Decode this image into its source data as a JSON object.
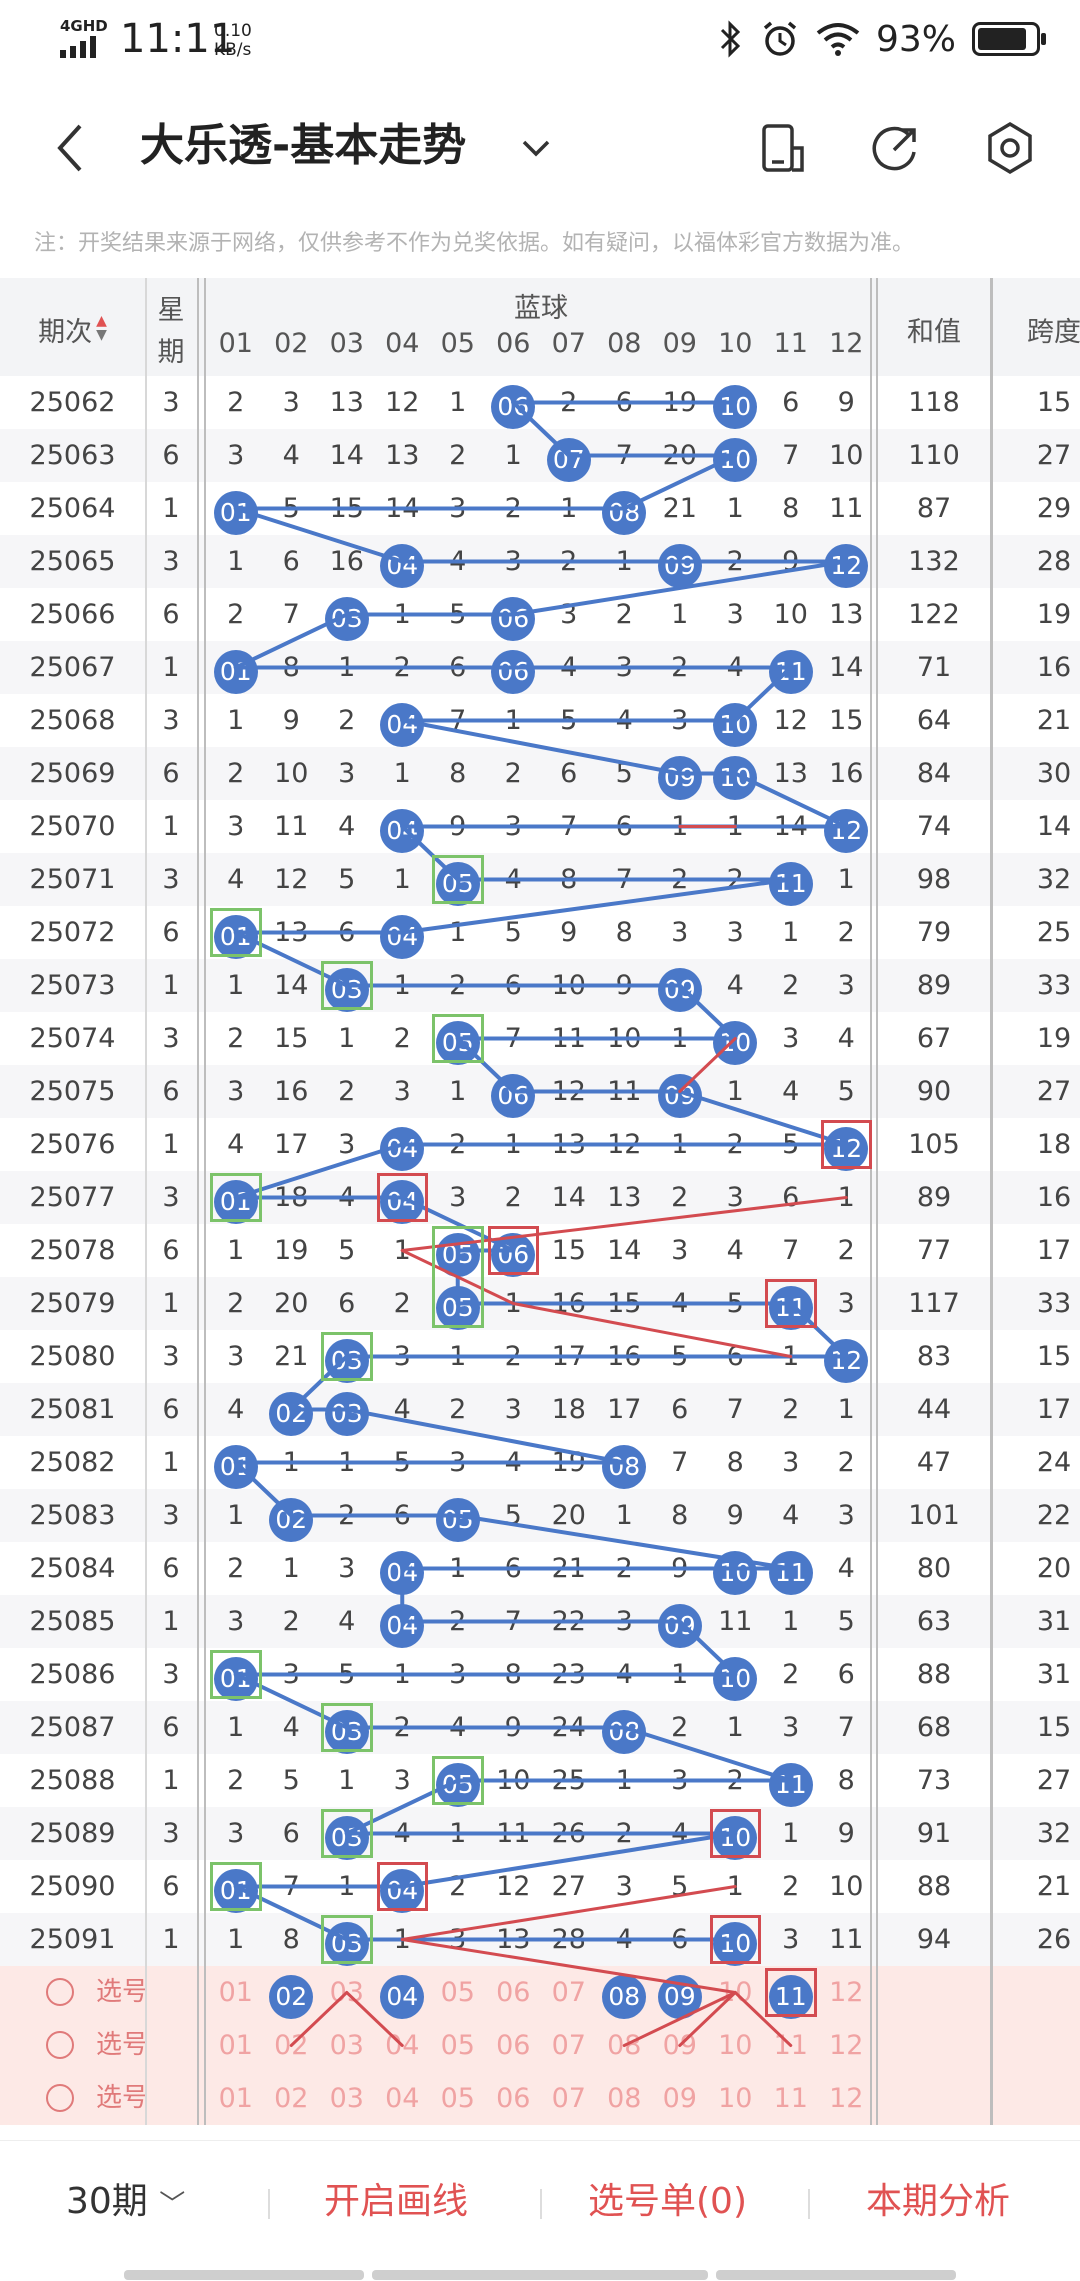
{
  "status": {
    "network": "4GHD",
    "time": "11:11",
    "speed_value": "0.10",
    "speed_unit": "KB/s",
    "battery": "93%"
  },
  "header": {
    "title": "大乐透-基本走势",
    "icons": [
      "back-icon",
      "chevron-down-icon",
      "phone-icon",
      "share-icon",
      "settings-icon"
    ]
  },
  "notice": "注：开奖结果来源于网络，仅供参考不作为兑奖依据。如有疑问，以福体彩官方数据为准。",
  "table": {
    "col_period": "期次",
    "col_week_1": "星",
    "col_week_2": "期",
    "col_blue": "蓝球",
    "col_sum": "和值",
    "col_span": "跨度",
    "numbers": [
      "01",
      "02",
      "03",
      "04",
      "05",
      "06",
      "07",
      "08",
      "09",
      "10",
      "11",
      "12"
    ],
    "rows": [
      {
        "p": "25062",
        "w": "3",
        "c": [
          "2",
          "3",
          "13",
          "12",
          "1",
          "06",
          "2",
          "6",
          "19",
          "10",
          "6",
          "9"
        ],
        "s": "118",
        "k": "15"
      },
      {
        "p": "25063",
        "w": "6",
        "c": [
          "3",
          "4",
          "14",
          "13",
          "2",
          "1",
          "07",
          "7",
          "20",
          "10",
          "7",
          "10"
        ],
        "s": "110",
        "k": "27"
      },
      {
        "p": "25064",
        "w": "1",
        "c": [
          "01",
          "5",
          "15",
          "14",
          "3",
          "2",
          "1",
          "08",
          "21",
          "1",
          "8",
          "11"
        ],
        "s": "87",
        "k": "29"
      },
      {
        "p": "25065",
        "w": "3",
        "c": [
          "1",
          "6",
          "16",
          "04",
          "4",
          "3",
          "2",
          "1",
          "09",
          "2",
          "9",
          "12"
        ],
        "s": "132",
        "k": "28"
      },
      {
        "p": "25066",
        "w": "6",
        "c": [
          "2",
          "7",
          "03",
          "1",
          "5",
          "06",
          "3",
          "2",
          "1",
          "3",
          "10",
          "13"
        ],
        "s": "122",
        "k": "19"
      },
      {
        "p": "25067",
        "w": "1",
        "c": [
          "01",
          "8",
          "1",
          "2",
          "6",
          "06",
          "4",
          "3",
          "2",
          "4",
          "11",
          "14"
        ],
        "s": "71",
        "k": "16"
      },
      {
        "p": "25068",
        "w": "3",
        "c": [
          "1",
          "9",
          "2",
          "04",
          "7",
          "1",
          "5",
          "4",
          "3",
          "10",
          "12",
          "15"
        ],
        "s": "64",
        "k": "21"
      },
      {
        "p": "25069",
        "w": "6",
        "c": [
          "2",
          "10",
          "3",
          "1",
          "8",
          "2",
          "6",
          "5",
          "09",
          "10",
          "13",
          "16"
        ],
        "s": "84",
        "k": "30"
      },
      {
        "p": "25070",
        "w": "1",
        "c": [
          "3",
          "11",
          "4",
          "04",
          "9",
          "3",
          "7",
          "6",
          "1",
          "1",
          "14",
          "12"
        ],
        "s": "74",
        "k": "14"
      },
      {
        "p": "25071",
        "w": "3",
        "c": [
          "4",
          "12",
          "5",
          "1",
          "05",
          "4",
          "8",
          "7",
          "2",
          "2",
          "11",
          "1"
        ],
        "s": "98",
        "k": "32"
      },
      {
        "p": "25072",
        "w": "6",
        "c": [
          "01",
          "13",
          "6",
          "04",
          "1",
          "5",
          "9",
          "8",
          "3",
          "3",
          "1",
          "2"
        ],
        "s": "79",
        "k": "25"
      },
      {
        "p": "25073",
        "w": "1",
        "c": [
          "1",
          "14",
          "03",
          "1",
          "2",
          "6",
          "10",
          "9",
          "09",
          "4",
          "2",
          "3"
        ],
        "s": "89",
        "k": "33"
      },
      {
        "p": "25074",
        "w": "3",
        "c": [
          "2",
          "15",
          "1",
          "2",
          "05",
          "7",
          "11",
          "10",
          "1",
          "10",
          "3",
          "4"
        ],
        "s": "67",
        "k": "19"
      },
      {
        "p": "25075",
        "w": "6",
        "c": [
          "3",
          "16",
          "2",
          "3",
          "1",
          "06",
          "12",
          "11",
          "09",
          "1",
          "4",
          "5"
        ],
        "s": "90",
        "k": "27"
      },
      {
        "p": "25076",
        "w": "1",
        "c": [
          "4",
          "17",
          "3",
          "04",
          "2",
          "1",
          "13",
          "12",
          "1",
          "2",
          "5",
          "12"
        ],
        "s": "105",
        "k": "18"
      },
      {
        "p": "25077",
        "w": "3",
        "c": [
          "01",
          "18",
          "4",
          "04",
          "3",
          "2",
          "14",
          "13",
          "2",
          "3",
          "6",
          "1"
        ],
        "s": "89",
        "k": "16"
      },
      {
        "p": "25078",
        "w": "6",
        "c": [
          "1",
          "19",
          "5",
          "1",
          "05",
          "06",
          "15",
          "14",
          "3",
          "4",
          "7",
          "2"
        ],
        "s": "77",
        "k": "17"
      },
      {
        "p": "25079",
        "w": "1",
        "c": [
          "2",
          "20",
          "6",
          "2",
          "05",
          "1",
          "16",
          "15",
          "4",
          "5",
          "11",
          "3"
        ],
        "s": "117",
        "k": "33"
      },
      {
        "p": "25080",
        "w": "3",
        "c": [
          "3",
          "21",
          "03",
          "3",
          "1",
          "2",
          "17",
          "16",
          "5",
          "6",
          "1",
          "12"
        ],
        "s": "83",
        "k": "15"
      },
      {
        "p": "25081",
        "w": "6",
        "c": [
          "4",
          "02",
          "03",
          "4",
          "2",
          "3",
          "18",
          "17",
          "6",
          "7",
          "2",
          "1"
        ],
        "s": "44",
        "k": "17"
      },
      {
        "p": "25082",
        "w": "1",
        "c": [
          "01",
          "1",
          "1",
          "5",
          "3",
          "4",
          "19",
          "08",
          "7",
          "8",
          "3",
          "2"
        ],
        "s": "47",
        "k": "24"
      },
      {
        "p": "25083",
        "w": "3",
        "c": [
          "1",
          "02",
          "2",
          "6",
          "05",
          "5",
          "20",
          "1",
          "8",
          "9",
          "4",
          "3"
        ],
        "s": "101",
        "k": "22"
      },
      {
        "p": "25084",
        "w": "6",
        "c": [
          "2",
          "1",
          "3",
          "04",
          "1",
          "6",
          "21",
          "2",
          "9",
          "10",
          "11",
          "4"
        ],
        "s": "80",
        "k": "20"
      },
      {
        "p": "25085",
        "w": "1",
        "c": [
          "3",
          "2",
          "4",
          "04",
          "2",
          "7",
          "22",
          "3",
          "09",
          "11",
          "1",
          "5"
        ],
        "s": "63",
        "k": "31"
      },
      {
        "p": "25086",
        "w": "3",
        "c": [
          "01",
          "3",
          "5",
          "1",
          "3",
          "8",
          "23",
          "4",
          "1",
          "10",
          "2",
          "6"
        ],
        "s": "88",
        "k": "31"
      },
      {
        "p": "25087",
        "w": "6",
        "c": [
          "1",
          "4",
          "03",
          "2",
          "4",
          "9",
          "24",
          "08",
          "2",
          "1",
          "3",
          "7"
        ],
        "s": "68",
        "k": "15"
      },
      {
        "p": "25088",
        "w": "1",
        "c": [
          "2",
          "5",
          "1",
          "3",
          "05",
          "10",
          "25",
          "1",
          "3",
          "2",
          "11",
          "8"
        ],
        "s": "73",
        "k": "27"
      },
      {
        "p": "25089",
        "w": "3",
        "c": [
          "3",
          "6",
          "03",
          "4",
          "1",
          "11",
          "26",
          "2",
          "4",
          "10",
          "1",
          "9"
        ],
        "s": "91",
        "k": "32"
      },
      {
        "p": "25090",
        "w": "6",
        "c": [
          "01",
          "7",
          "1",
          "04",
          "2",
          "12",
          "27",
          "3",
          "5",
          "1",
          "2",
          "10"
        ],
        "s": "88",
        "k": "21"
      },
      {
        "p": "25091",
        "w": "1",
        "c": [
          "1",
          "8",
          "03",
          "1",
          "3",
          "13",
          "28",
          "4",
          "6",
          "10",
          "3",
          "11"
        ],
        "s": "94",
        "k": "26"
      }
    ],
    "pick_label": "选号",
    "pick_balls": [
      [
        "02",
        "04",
        "08",
        "09",
        "11"
      ],
      [],
      []
    ]
  },
  "bottom": {
    "periods": "30期",
    "draw_line": "开启画线",
    "pick_list": "选号单(0)",
    "analysis": "本期分析"
  },
  "colors": {
    "ball": "#4a78c8",
    "line_blue": "#4a78c8",
    "line_red": "#d34b50",
    "box_green": "#7cc36a",
    "accent_red": "#e05252"
  }
}
